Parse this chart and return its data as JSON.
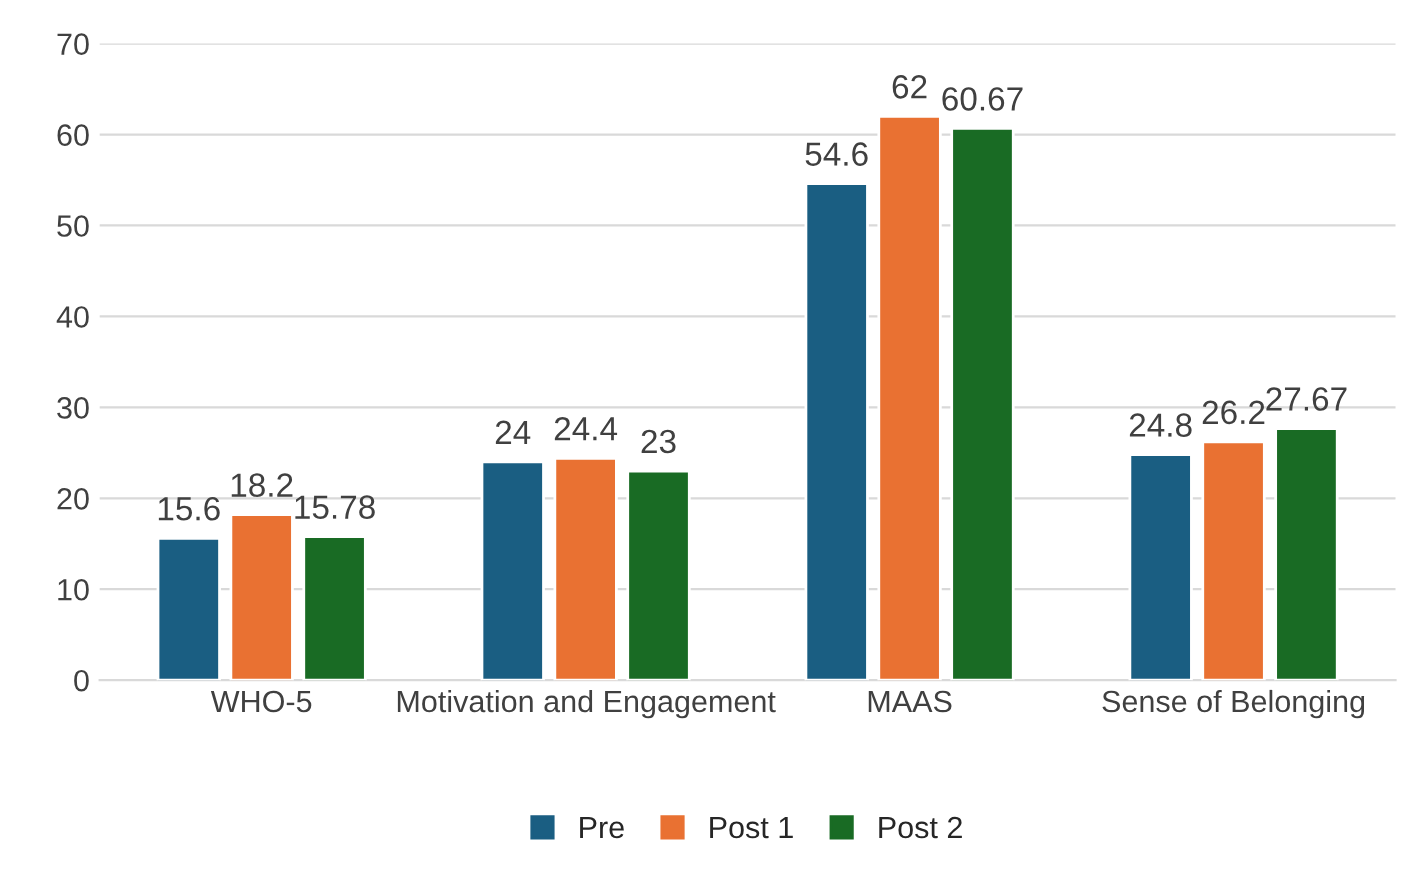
{
  "chart_data": {
    "type": "bar",
    "categories": [
      "WHO-5",
      "Motivation and Engagement",
      "MAAS",
      "Sense of Belonging"
    ],
    "series": [
      {
        "name": "Pre",
        "color": "#1a5e82",
        "values": [
          15.6,
          24,
          54.6,
          24.8
        ]
      },
      {
        "name": "Post 1",
        "color": "#e97132",
        "values": [
          18.2,
          24.4,
          62,
          26.2
        ]
      },
      {
        "name": "Post 2",
        "color": "#196b24",
        "values": [
          15.78,
          23,
          60.67,
          27.67
        ]
      }
    ],
    "ylim": [
      0,
      70
    ],
    "yticks": [
      0,
      10,
      20,
      30,
      40,
      50,
      60,
      70
    ],
    "grid": "y",
    "legend": "bottom",
    "data_labels": true
  }
}
